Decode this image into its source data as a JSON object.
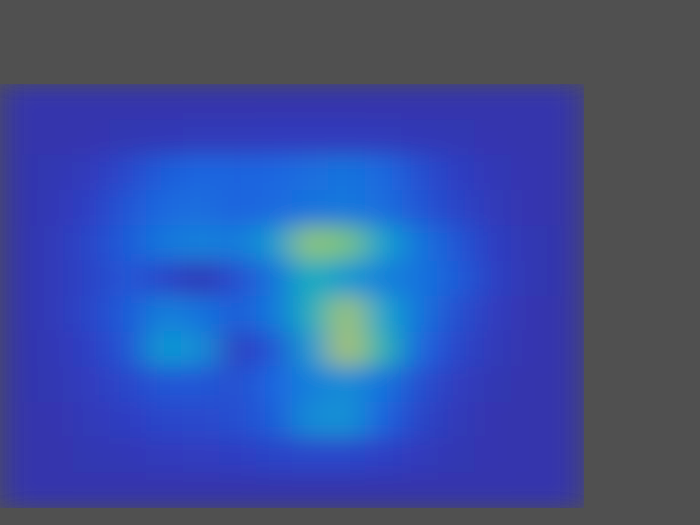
{
  "chart_data": {
    "type": "heatmap",
    "tick_labels": false,
    "color_range": [
      0,
      1
    ],
    "cells": [
      [
        0.05,
        0.05,
        0.05,
        0.05,
        0.05,
        0.05,
        0.05,
        0.05,
        0.05,
        0.05,
        0.05,
        0.05,
        0.05,
        0.05,
        0.05,
        0.05
      ],
      [
        0.05,
        0.05,
        0.06,
        0.07,
        0.08,
        0.09,
        0.09,
        0.1,
        0.1,
        0.1,
        0.09,
        0.08,
        0.07,
        0.06,
        0.05,
        0.05
      ],
      [
        0.05,
        0.07,
        0.1,
        0.16,
        0.22,
        0.25,
        0.24,
        0.25,
        0.28,
        0.3,
        0.26,
        0.18,
        0.12,
        0.08,
        0.06,
        0.05
      ],
      [
        0.05,
        0.08,
        0.13,
        0.2,
        0.26,
        0.28,
        0.24,
        0.27,
        0.3,
        0.32,
        0.28,
        0.2,
        0.14,
        0.09,
        0.06,
        0.05
      ],
      [
        0.05,
        0.09,
        0.15,
        0.22,
        0.32,
        0.35,
        0.33,
        0.45,
        0.75,
        0.72,
        0.48,
        0.3,
        0.2,
        0.12,
        0.07,
        0.05
      ],
      [
        0.05,
        0.09,
        0.14,
        0.2,
        0.15,
        0.08,
        0.18,
        0.3,
        0.55,
        0.45,
        0.35,
        0.3,
        0.22,
        0.13,
        0.07,
        0.05
      ],
      [
        0.05,
        0.09,
        0.15,
        0.22,
        0.35,
        0.3,
        0.22,
        0.32,
        0.55,
        0.78,
        0.5,
        0.3,
        0.18,
        0.11,
        0.06,
        0.05
      ],
      [
        0.05,
        0.08,
        0.13,
        0.2,
        0.45,
        0.4,
        0.12,
        0.2,
        0.45,
        0.8,
        0.58,
        0.25,
        0.15,
        0.09,
        0.06,
        0.05
      ],
      [
        0.05,
        0.07,
        0.11,
        0.15,
        0.2,
        0.2,
        0.18,
        0.25,
        0.35,
        0.4,
        0.3,
        0.18,
        0.11,
        0.07,
        0.05,
        0.05
      ],
      [
        0.05,
        0.06,
        0.09,
        0.12,
        0.15,
        0.16,
        0.18,
        0.22,
        0.4,
        0.42,
        0.24,
        0.14,
        0.09,
        0.06,
        0.05,
        0.05
      ],
      [
        0.05,
        0.05,
        0.07,
        0.08,
        0.1,
        0.11,
        0.12,
        0.14,
        0.15,
        0.15,
        0.13,
        0.1,
        0.07,
        0.06,
        0.05,
        0.05
      ],
      [
        0.05,
        0.05,
        0.05,
        0.05,
        0.05,
        0.05,
        0.05,
        0.05,
        0.05,
        0.05,
        0.05,
        0.05,
        0.05,
        0.05,
        0.05,
        0.05
      ]
    ]
  }
}
